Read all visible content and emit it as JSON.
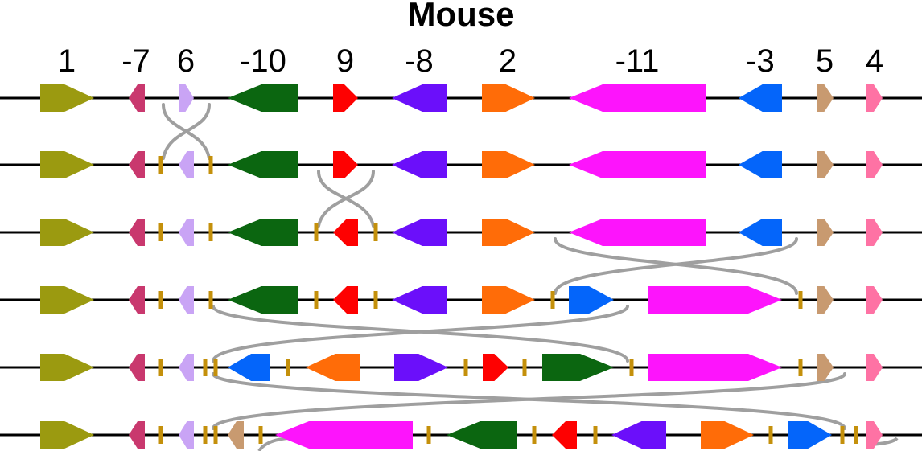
{
  "title": "Mouse",
  "gene_labels": [
    "1",
    "-7",
    "6",
    "-10",
    "9",
    "-8",
    "2",
    "-11",
    "-3",
    "5",
    "4"
  ],
  "colors": {
    "g1": "#9b9a10",
    "g7": "#c9386e",
    "g6": "#c9a4f5",
    "g10": "#0b6610",
    "g9": "#fe0101",
    "g8": "#6b0ffa",
    "g2": "#ff6c08",
    "g11": "#fd14fc",
    "g3": "#0465fa",
    "g5": "#c89a70",
    "g4": "#fe72a4",
    "breakpoint": "#c4900b",
    "arc": "#9f9f9f",
    "line": "#000000"
  },
  "rows": [
    {
      "genes": [
        {
          "id": "1",
          "dir": "right",
          "color": "g1"
        },
        {
          "id": "7",
          "dir": "left",
          "color": "g7"
        },
        {
          "id": "6",
          "dir": "right",
          "color": "g6"
        },
        {
          "id": "10",
          "dir": "left",
          "color": "g10"
        },
        {
          "id": "9",
          "dir": "right",
          "color": "g9"
        },
        {
          "id": "8",
          "dir": "left",
          "color": "g8"
        },
        {
          "id": "2",
          "dir": "right",
          "color": "g2"
        },
        {
          "id": "11",
          "dir": "left",
          "color": "g11"
        },
        {
          "id": "3",
          "dir": "left",
          "color": "g3"
        },
        {
          "id": "5",
          "dir": "right",
          "color": "g5"
        },
        {
          "id": "4",
          "dir": "right",
          "color": "g4"
        }
      ]
    },
    {
      "genes": [
        {
          "id": "1",
          "dir": "right",
          "color": "g1"
        },
        {
          "id": "7",
          "dir": "left",
          "color": "g7"
        },
        {
          "id": "6",
          "dir": "left",
          "color": "g6"
        },
        {
          "id": "10",
          "dir": "left",
          "color": "g10"
        },
        {
          "id": "9",
          "dir": "right",
          "color": "g9"
        },
        {
          "id": "8",
          "dir": "left",
          "color": "g8"
        },
        {
          "id": "2",
          "dir": "right",
          "color": "g2"
        },
        {
          "id": "11",
          "dir": "left",
          "color": "g11"
        },
        {
          "id": "3",
          "dir": "left",
          "color": "g3"
        },
        {
          "id": "5",
          "dir": "right",
          "color": "g5"
        },
        {
          "id": "4",
          "dir": "right",
          "color": "g4"
        }
      ]
    },
    {
      "genes": [
        {
          "id": "1",
          "dir": "right",
          "color": "g1"
        },
        {
          "id": "7",
          "dir": "left",
          "color": "g7"
        },
        {
          "id": "6",
          "dir": "left",
          "color": "g6"
        },
        {
          "id": "10",
          "dir": "left",
          "color": "g10"
        },
        {
          "id": "9",
          "dir": "left",
          "color": "g9"
        },
        {
          "id": "8",
          "dir": "left",
          "color": "g8"
        },
        {
          "id": "2",
          "dir": "right",
          "color": "g2"
        },
        {
          "id": "11",
          "dir": "left",
          "color": "g11"
        },
        {
          "id": "3",
          "dir": "left",
          "color": "g3"
        },
        {
          "id": "5",
          "dir": "right",
          "color": "g5"
        },
        {
          "id": "4",
          "dir": "right",
          "color": "g4"
        }
      ]
    },
    {
      "genes": [
        {
          "id": "1",
          "dir": "right",
          "color": "g1"
        },
        {
          "id": "7",
          "dir": "left",
          "color": "g7"
        },
        {
          "id": "6",
          "dir": "left",
          "color": "g6"
        },
        {
          "id": "10",
          "dir": "left",
          "color": "g10"
        },
        {
          "id": "9",
          "dir": "left",
          "color": "g9"
        },
        {
          "id": "8",
          "dir": "left",
          "color": "g8"
        },
        {
          "id": "2",
          "dir": "right",
          "color": "g2"
        },
        {
          "id": "3",
          "dir": "right",
          "color": "g3"
        },
        {
          "id": "11",
          "dir": "right",
          "color": "g11"
        },
        {
          "id": "5",
          "dir": "right",
          "color": "g5"
        },
        {
          "id": "4",
          "dir": "right",
          "color": "g4"
        }
      ]
    },
    {
      "genes": [
        {
          "id": "1",
          "dir": "right",
          "color": "g1"
        },
        {
          "id": "7",
          "dir": "left",
          "color": "g7"
        },
        {
          "id": "6",
          "dir": "left",
          "color": "g6"
        },
        {
          "id": "3",
          "dir": "left",
          "color": "g3"
        },
        {
          "id": "2",
          "dir": "left",
          "color": "g2"
        },
        {
          "id": "8",
          "dir": "right",
          "color": "g8"
        },
        {
          "id": "9",
          "dir": "right",
          "color": "g9"
        },
        {
          "id": "10",
          "dir": "right",
          "color": "g10"
        },
        {
          "id": "11",
          "dir": "right",
          "color": "g11"
        },
        {
          "id": "5",
          "dir": "right",
          "color": "g5"
        },
        {
          "id": "4",
          "dir": "right",
          "color": "g4"
        }
      ]
    },
    {
      "genes": [
        {
          "id": "1",
          "dir": "right",
          "color": "g1"
        },
        {
          "id": "7",
          "dir": "left",
          "color": "g7"
        },
        {
          "id": "6",
          "dir": "left",
          "color": "g6"
        },
        {
          "id": "5",
          "dir": "left",
          "color": "g5"
        },
        {
          "id": "11",
          "dir": "left",
          "color": "g11"
        },
        {
          "id": "10",
          "dir": "left",
          "color": "g10"
        },
        {
          "id": "9",
          "dir": "left",
          "color": "g9"
        },
        {
          "id": "8",
          "dir": "left",
          "color": "g8"
        },
        {
          "id": "2",
          "dir": "right",
          "color": "g2"
        },
        {
          "id": "3",
          "dir": "right",
          "color": "g3"
        },
        {
          "id": "4",
          "dir": "right",
          "color": "g4"
        }
      ]
    }
  ]
}
